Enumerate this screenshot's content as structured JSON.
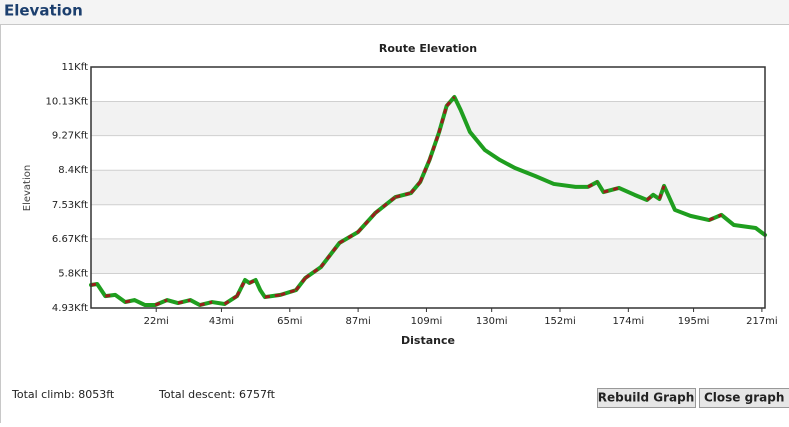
{
  "header": {
    "title": "Elevation"
  },
  "chart_data": {
    "type": "line",
    "title": "Route Elevation",
    "x_label": "Distance",
    "y_label": "Elevation",
    "x": [
      1,
      3,
      5.6,
      8.8,
      12,
      15,
      18.4,
      21.7,
      25.5,
      29,
      33,
      36,
      40,
      44,
      48,
      50.6,
      52,
      54,
      55.5,
      57,
      62,
      67,
      70,
      75,
      81,
      87,
      92.5,
      99,
      104,
      107,
      110,
      113,
      115.5,
      118,
      120,
      123,
      127.8,
      132.6,
      137.5,
      144,
      150,
      157,
      161,
      164,
      166,
      171,
      176,
      180,
      182,
      184,
      185.5,
      189,
      194,
      200,
      204,
      208,
      215,
      218
    ],
    "values": [
      5510,
      5535,
      5230,
      5260,
      5080,
      5130,
      5005,
      5005,
      5130,
      5055,
      5130,
      5005,
      5080,
      5030,
      5230,
      5635,
      5560,
      5635,
      5380,
      5205,
      5260,
      5380,
      5685,
      5960,
      6570,
      6845,
      7320,
      7725,
      7825,
      8105,
      8660,
      9340,
      10020,
      10245,
      9920,
      9365,
      8910,
      8660,
      8455,
      8255,
      8055,
      7980,
      7980,
      8105,
      7850,
      7955,
      7780,
      7650,
      7780,
      7675,
      8005,
      7400,
      7250,
      7145,
      7275,
      7020,
      6945,
      6770
    ],
    "color": "#1f9e1f",
    "climb_color": "#9c1c1c",
    "xlim": [
      1,
      218
    ],
    "xticks": [
      {
        "value": 22,
        "label": "22mi"
      },
      {
        "value": 43,
        "label": "43mi"
      },
      {
        "value": 65,
        "label": "65mi"
      },
      {
        "value": 87,
        "label": "87mi"
      },
      {
        "value": 109,
        "label": "109mi"
      },
      {
        "value": 130,
        "label": "130mi"
      },
      {
        "value": 152,
        "label": "152mi"
      },
      {
        "value": 174,
        "label": "174mi"
      },
      {
        "value": 195,
        "label": "195mi"
      },
      {
        "value": 217,
        "label": "217mi"
      }
    ],
    "ylim": [
      4930,
      11000
    ],
    "yticks": [
      {
        "value": 4930,
        "label": "4.93Kft"
      },
      {
        "value": 5800,
        "label": "5.8Kft"
      },
      {
        "value": 6670,
        "label": "6.67Kft"
      },
      {
        "value": 7530,
        "label": "7.53Kft"
      },
      {
        "value": 8400,
        "label": "8.4Kft"
      },
      {
        "value": 9270,
        "label": "9.27Kft"
      },
      {
        "value": 10130,
        "label": "10.13Kft"
      },
      {
        "value": 11000,
        "label": "11Kft"
      }
    ],
    "grid": true
  },
  "footer": {
    "total_climb": "Total climb: 8053ft",
    "total_descent": "Total descent: 6757ft",
    "buttons": [
      "Rebuild Graph",
      "Close graph ×"
    ]
  }
}
